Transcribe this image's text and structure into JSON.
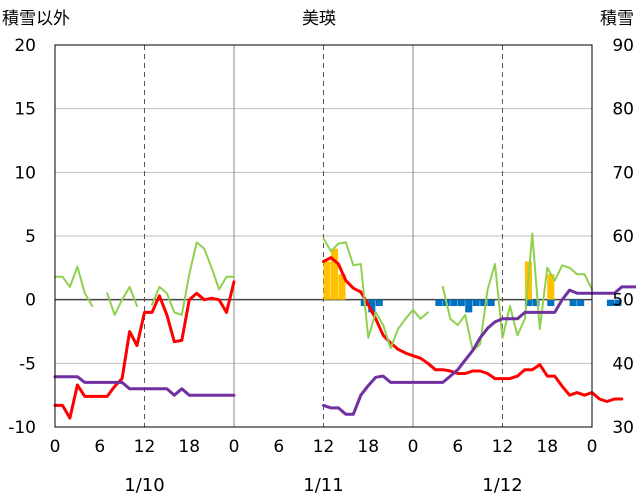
{
  "chart_data": {
    "type": "line",
    "title": "美瑛",
    "left_axis_label": "積雪以外",
    "right_axis_label": "積雪",
    "left_ylim": [
      -10,
      20
    ],
    "right_ylim": [
      30,
      90
    ],
    "left_ticks": [
      "20",
      "15",
      "10",
      "5",
      "0",
      "-5",
      "-10"
    ],
    "right_ticks": [
      "90",
      "80",
      "70",
      "60",
      "50",
      "40",
      "30"
    ],
    "x_tick_labels": [
      "0",
      "6",
      "12",
      "18",
      "0",
      "6",
      "12",
      "18",
      "0",
      "6",
      "12",
      "18",
      "0"
    ],
    "date_labels": [
      "1/10",
      "1/11",
      "1/12"
    ],
    "grid": true,
    "series": [
      {
        "type": "line",
        "color": "#ff0000",
        "axis": "left",
        "segments": [
          [
            [
              0,
              -8.3
            ],
            [
              1,
              -8.3
            ],
            [
              2,
              -9.3
            ],
            [
              3,
              -6.7
            ],
            [
              4,
              -7.6
            ],
            [
              5,
              -7.6
            ],
            [
              6,
              -7.6
            ],
            [
              7,
              -7.6
            ],
            [
              8,
              -6.8
            ],
            [
              9,
              -6.2
            ],
            [
              10,
              -2.5
            ],
            [
              11,
              -3.6
            ],
            [
              12,
              -1.0
            ],
            [
              13,
              -1.0
            ],
            [
              14,
              0.3
            ],
            [
              15,
              -1.2
            ],
            [
              16,
              -3.3
            ],
            [
              17,
              -3.2
            ],
            [
              18,
              0.0
            ],
            [
              19,
              0.5
            ],
            [
              20,
              0.0
            ],
            [
              21,
              0.1
            ],
            [
              22,
              0.0
            ],
            [
              23,
              -1.0
            ],
            [
              24,
              1.4
            ]
          ],
          [
            [
              36,
              3.0
            ],
            [
              37,
              3.3
            ],
            [
              38,
              2.8
            ],
            [
              39,
              1.5
            ],
            [
              40,
              0.9
            ],
            [
              41,
              0.6
            ],
            [
              42,
              -0.4
            ],
            [
              43,
              -1.5
            ],
            [
              44,
              -2.8
            ],
            [
              45,
              -3.4
            ],
            [
              46,
              -3.9
            ],
            [
              47,
              -4.2
            ],
            [
              48,
              -4.4
            ],
            [
              49,
              -4.6
            ],
            [
              50,
              -5.0
            ],
            [
              51,
              -5.5
            ],
            [
              52,
              -5.5
            ],
            [
              53,
              -5.6
            ],
            [
              54,
              -5.8
            ],
            [
              55,
              -5.8
            ],
            [
              56,
              -5.6
            ],
            [
              57,
              -5.6
            ],
            [
              58,
              -5.8
            ],
            [
              59,
              -6.2
            ],
            [
              60,
              -6.2
            ],
            [
              61,
              -6.2
            ],
            [
              62,
              -6.0
            ],
            [
              63,
              -5.5
            ],
            [
              64,
              -5.5
            ],
            [
              65,
              -5.1
            ],
            [
              66,
              -6.0
            ],
            [
              67,
              -6.0
            ],
            [
              68,
              -6.8
            ],
            [
              69,
              -7.5
            ],
            [
              70,
              -7.3
            ],
            [
              71,
              -7.5
            ],
            [
              72,
              -7.3
            ],
            [
              73,
              -7.8
            ],
            [
              74,
              -8.0
            ],
            [
              75,
              -7.8
            ],
            [
              76,
              -7.8
            ]
          ]
        ]
      },
      {
        "type": "line",
        "color": "#8fd14f",
        "axis": "left",
        "segments": [
          [
            [
              0,
              1.8
            ],
            [
              1,
              1.8
            ],
            [
              2,
              1.0
            ],
            [
              3,
              2.6
            ],
            [
              4,
              0.5
            ],
            [
              5,
              -0.5
            ]
          ],
          [
            [
              7,
              0.5
            ],
            [
              8,
              -1.2
            ],
            [
              9,
              0.0
            ],
            [
              10,
              1.0
            ],
            [
              11,
              -0.5
            ]
          ],
          [
            [
              13,
              -0.4
            ],
            [
              14,
              1.0
            ],
            [
              15,
              0.5
            ],
            [
              16,
              -1.0
            ],
            [
              17,
              -1.2
            ],
            [
              18,
              2.0
            ],
            [
              19,
              4.5
            ],
            [
              20,
              4.0
            ],
            [
              21,
              2.5
            ],
            [
              22,
              0.8
            ],
            [
              23,
              1.8
            ],
            [
              24,
              1.8
            ]
          ],
          [
            [
              36,
              4.8
            ],
            [
              37,
              3.8
            ],
            [
              38,
              4.4
            ],
            [
              39,
              4.5
            ],
            [
              40,
              2.7
            ],
            [
              41,
              2.8
            ],
            [
              42,
              -3.0
            ],
            [
              43,
              -1.0
            ],
            [
              44,
              -2.0
            ],
            [
              45,
              -3.8
            ],
            [
              46,
              -2.3
            ],
            [
              47,
              -1.5
            ],
            [
              48,
              -0.8
            ],
            [
              49,
              -1.5
            ],
            [
              50,
              -1.0
            ]
          ],
          [
            [
              52,
              1.0
            ],
            [
              53,
              -1.5
            ],
            [
              54,
              -2.0
            ],
            [
              55,
              -1.2
            ],
            [
              56,
              -4.0
            ],
            [
              57,
              -3.5
            ],
            [
              58,
              0.8
            ],
            [
              59,
              2.8
            ],
            [
              60,
              -3.0
            ],
            [
              61,
              -0.5
            ],
            [
              62,
              -2.8
            ],
            [
              63,
              -1.5
            ],
            [
              64,
              5.2
            ],
            [
              65,
              -2.3
            ],
            [
              66,
              2.5
            ],
            [
              67,
              1.5
            ],
            [
              68,
              2.7
            ],
            [
              69,
              2.5
            ],
            [
              70,
              2.0
            ],
            [
              71,
              2.0
            ],
            [
              72,
              0.8
            ]
          ]
        ]
      },
      {
        "type": "line",
        "color": "#7030a0",
        "axis": "right",
        "segments": [
          [
            [
              0,
              37.9
            ],
            [
              1,
              37.9
            ],
            [
              2,
              37.9
            ],
            [
              3,
              37.9
            ],
            [
              4,
              37.0
            ],
            [
              5,
              37.0
            ],
            [
              6,
              37.0
            ],
            [
              7,
              37.0
            ],
            [
              8,
              37.0
            ],
            [
              9,
              37.0
            ],
            [
              10,
              36.0
            ],
            [
              11,
              36.0
            ],
            [
              12,
              36.0
            ],
            [
              13,
              36.0
            ],
            [
              14,
              36.0
            ],
            [
              15,
              36.0
            ],
            [
              16,
              35.0
            ],
            [
              17,
              36.0
            ],
            [
              18,
              35.0
            ],
            [
              19,
              35.0
            ],
            [
              20,
              35.0
            ],
            [
              21,
              35.0
            ],
            [
              22,
              35.0
            ],
            [
              23,
              35.0
            ],
            [
              24,
              35.0
            ]
          ],
          [
            [
              36,
              33.4
            ],
            [
              37,
              33.0
            ],
            [
              38,
              33.0
            ],
            [
              39,
              32.0
            ],
            [
              40,
              32.0
            ],
            [
              41,
              35.0
            ],
            [
              42,
              36.5
            ],
            [
              43,
              37.8
            ],
            [
              44,
              38.0
            ],
            [
              45,
              37.0
            ],
            [
              46,
              37.0
            ],
            [
              47,
              37.0
            ],
            [
              48,
              37.0
            ],
            [
              49,
              37.0
            ],
            [
              50,
              37.0
            ],
            [
              51,
              37.0
            ],
            [
              52,
              37.0
            ],
            [
              53,
              38.0
            ],
            [
              54,
              39.0
            ],
            [
              55,
              40.5
            ],
            [
              56,
              42.0
            ],
            [
              57,
              44.0
            ],
            [
              58,
              45.5
            ],
            [
              59,
              46.5
            ],
            [
              60,
              47.0
            ],
            [
              61,
              47.0
            ],
            [
              62,
              47.0
            ],
            [
              63,
              48.0
            ],
            [
              64,
              48.0
            ],
            [
              65,
              48.0
            ],
            [
              66,
              48.0
            ],
            [
              67,
              48.0
            ],
            [
              68,
              50.0
            ],
            [
              69,
              51.5
            ],
            [
              70,
              51.0
            ],
            [
              71,
              51.0
            ],
            [
              72,
              51.0
            ],
            [
              73,
              51.0
            ],
            [
              74,
              51.0
            ],
            [
              75,
              51.0
            ],
            [
              76,
              52.0
            ],
            [
              77,
              52.0
            ],
            [
              78,
              52.0
            ]
          ]
        ]
      },
      {
        "type": "bar",
        "color": "#ffc000",
        "axis": "left",
        "points": [
          [
            36,
            3.0
          ],
          [
            37,
            4.0
          ],
          [
            38,
            2.0
          ],
          [
            63,
            3.0
          ],
          [
            66,
            2.0
          ]
        ]
      },
      {
        "type": "bar",
        "color": "#0070c0",
        "axis": "left",
        "points": [
          [
            41,
            -0.5
          ],
          [
            42,
            -1.0
          ],
          [
            43,
            -0.5
          ],
          [
            51,
            -0.5
          ],
          [
            52,
            -0.5
          ],
          [
            53,
            -0.5
          ],
          [
            54,
            -0.5
          ],
          [
            55,
            -1.0
          ],
          [
            56,
            -0.5
          ],
          [
            57,
            -0.5
          ],
          [
            58,
            -0.5
          ],
          [
            63,
            -0.5
          ],
          [
            64,
            -0.5
          ],
          [
            66,
            -0.5
          ],
          [
            69,
            -0.5
          ],
          [
            70,
            -0.5
          ],
          [
            74,
            -0.5
          ],
          [
            75,
            -0.5
          ]
        ]
      }
    ]
  }
}
